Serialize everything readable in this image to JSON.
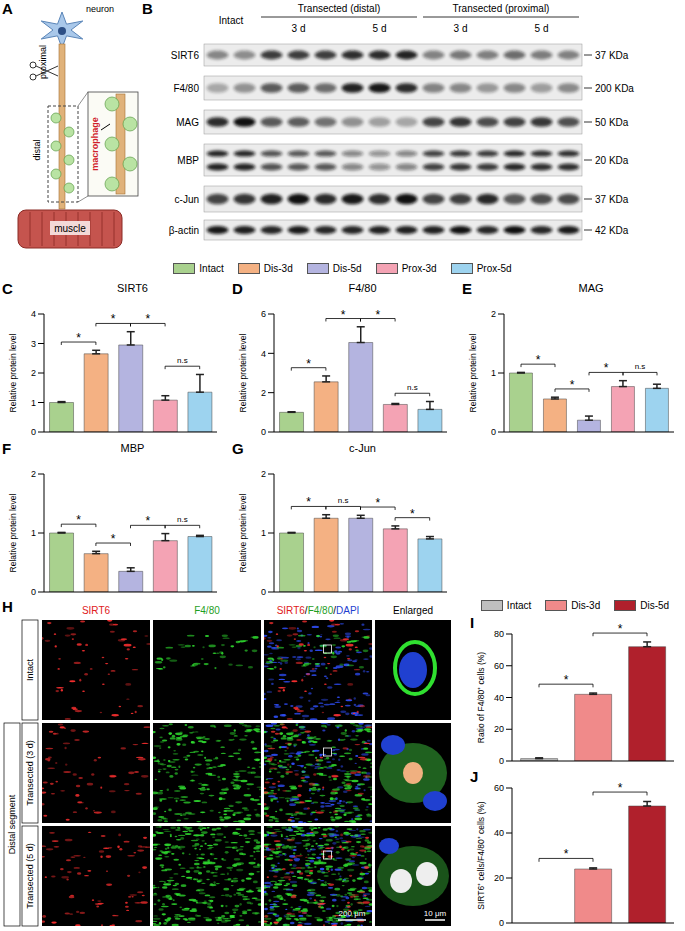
{
  "panel_A": {
    "letter": "A",
    "neuron": "neuron",
    "proximal": "proximal",
    "distal": "distal",
    "muscle": "muscle",
    "macrophage": "macrophage"
  },
  "panel_B": {
    "letter": "B",
    "groups": [
      "Intact",
      "Transected (distal)",
      "Transected (proximal)"
    ],
    "timepoints": [
      "3 d",
      "5 d"
    ],
    "rows": [
      {
        "name": "SIRT6",
        "kda": "37 KDa"
      },
      {
        "name": "F4/80",
        "kda": "200 KDa"
      },
      {
        "name": "MAG",
        "kda": "50 KDa"
      },
      {
        "name": "MBP",
        "kda": "20 KDa"
      },
      {
        "name": "c-Jun",
        "kda": "37 KDa"
      },
      {
        "name": "β-actin",
        "kda": "42 KDa"
      }
    ]
  },
  "chart_data": [
    {
      "type": "bar",
      "panel": "C",
      "title": "SIRT6",
      "y_label": "Relative protein level",
      "categories": [
        "Intact",
        "Dis-3d",
        "Dis-5d",
        "Prox-3d",
        "Prox-5d"
      ],
      "values": [
        1.0,
        2.65,
        2.95,
        1.08,
        1.35
      ],
      "errors": [
        0.03,
        0.12,
        0.45,
        0.15,
        0.6
      ],
      "colors": [
        "#a9d18e",
        "#f4b183",
        "#b4b4e0",
        "#f4a3b4",
        "#9dd3ef"
      ],
      "ylim": [
        0,
        4
      ],
      "yticks": [
        0,
        1,
        2,
        3,
        4
      ],
      "tick_labels": "y",
      "comparisons": [
        {
          "from": "Intact",
          "to": "Dis-3d",
          "label": "*"
        },
        {
          "from": "Dis-3d",
          "to": "Dis-5d",
          "label": "*"
        },
        {
          "from": "Dis-5d",
          "to": "Prox-3d",
          "label": "*"
        },
        {
          "from": "Prox-3d",
          "to": "Prox-5d",
          "label": "n.s"
        }
      ]
    },
    {
      "type": "bar",
      "panel": "D",
      "title": "F4/80",
      "y_label": "Relative protein level",
      "categories": [
        "Intact",
        "Dis-3d",
        "Dis-5d",
        "Prox-3d",
        "Prox-5d"
      ],
      "values": [
        1.0,
        2.55,
        4.55,
        1.4,
        1.15
      ],
      "errors": [
        0.03,
        0.3,
        0.8,
        0.05,
        0.4
      ],
      "colors": [
        "#a9d18e",
        "#f4b183",
        "#b4b4e0",
        "#f4a3b4",
        "#9dd3ef"
      ],
      "ylim": [
        0,
        6
      ],
      "yticks": [
        0,
        2,
        4,
        6
      ],
      "tick_labels": "y",
      "comparisons": [
        {
          "from": "Intact",
          "to": "Dis-3d",
          "label": "*"
        },
        {
          "from": "Dis-3d",
          "to": "Dis-5d",
          "label": "*"
        },
        {
          "from": "Dis-5d",
          "to": "Prox-3d",
          "label": "*"
        },
        {
          "from": "Prox-3d",
          "to": "Prox-5d",
          "label": "n.s"
        }
      ]
    },
    {
      "type": "bar",
      "panel": "E",
      "title": "MAG",
      "y_label": "Relative protein level",
      "categories": [
        "Intact",
        "Dis-3d",
        "Dis-5d",
        "Prox-3d",
        "Prox-5d"
      ],
      "values": [
        1.0,
        0.56,
        0.2,
        0.77,
        0.74
      ],
      "errors": [
        0.01,
        0.03,
        0.07,
        0.1,
        0.07
      ],
      "colors": [
        "#a9d18e",
        "#f4b183",
        "#b4b4e0",
        "#f4a3b4",
        "#9dd3ef"
      ],
      "ylim": [
        0,
        2
      ],
      "yticks": [
        0,
        1,
        2
      ],
      "tick_labels": "y",
      "comparisons": [
        {
          "from": "Intact",
          "to": "Dis-3d",
          "label": "*"
        },
        {
          "from": "Dis-3d",
          "to": "Dis-5d",
          "label": "*"
        },
        {
          "from": "Dis-5d",
          "to": "Prox-3d",
          "label": "*"
        },
        {
          "from": "Prox-3d",
          "to": "Prox-5d",
          "label": "n.s"
        }
      ]
    },
    {
      "type": "bar",
      "panel": "F",
      "title": "MBP",
      "y_label": "Relative protein level",
      "categories": [
        "Intact",
        "Dis-3d",
        "Dis-5d",
        "Prox-3d",
        "Prox-5d"
      ],
      "values": [
        1.0,
        0.65,
        0.35,
        0.87,
        0.94
      ],
      "errors": [
        0.01,
        0.04,
        0.06,
        0.12,
        0.02
      ],
      "colors": [
        "#a9d18e",
        "#f4b183",
        "#b4b4e0",
        "#f4a3b4",
        "#9dd3ef"
      ],
      "ylim": [
        0,
        2
      ],
      "yticks": [
        0,
        1,
        2
      ],
      "tick_labels": "y",
      "comparisons": [
        {
          "from": "Intact",
          "to": "Dis-3d",
          "label": "*"
        },
        {
          "from": "Dis-3d",
          "to": "Dis-5d",
          "label": "*"
        },
        {
          "from": "Dis-5d",
          "to": "Prox-3d",
          "label": "*"
        },
        {
          "from": "Prox-3d",
          "to": "Prox-5d",
          "label": "n.s"
        }
      ]
    },
    {
      "type": "bar",
      "panel": "G",
      "title": "c-Jun",
      "y_label": "Relative protein level",
      "categories": [
        "Intact",
        "Dis-3d",
        "Dis-5d",
        "Prox-3d",
        "Prox-5d"
      ],
      "values": [
        1.0,
        1.25,
        1.25,
        1.07,
        0.9
      ],
      "errors": [
        0.01,
        0.06,
        0.05,
        0.05,
        0.04
      ],
      "colors": [
        "#a9d18e",
        "#f4b183",
        "#b4b4e0",
        "#f4a3b4",
        "#9dd3ef"
      ],
      "ylim": [
        0,
        2
      ],
      "yticks": [
        0,
        1,
        2
      ],
      "tick_labels": "y",
      "comparisons": [
        {
          "from": "Intact",
          "to": "Dis-3d",
          "label": "*"
        },
        {
          "from": "Dis-3d",
          "to": "Dis-5d",
          "label": "n.s"
        },
        {
          "from": "Dis-5d",
          "to": "Prox-3d",
          "label": "*"
        },
        {
          "from": "Prox-3d",
          "to": "Prox-5d",
          "label": "*"
        }
      ]
    },
    {
      "type": "bar",
      "panel": "I",
      "y_label": "Ratio of F4/80⁺ cells (%)",
      "categories": [
        "Intact",
        "Dis-3d",
        "Dis-5d"
      ],
      "values": [
        1.5,
        42,
        72
      ],
      "errors": [
        0.5,
        0.8,
        3
      ],
      "colors": [
        "#bfbfbf",
        "#f08a8a",
        "#b0202c"
      ],
      "ylim": [
        0,
        80
      ],
      "yticks": [
        0,
        20,
        40,
        60,
        80
      ],
      "tick_labels": "y",
      "comparisons": [
        {
          "from": "Intact",
          "to": "Dis-3d",
          "label": "*"
        },
        {
          "from": "Dis-3d",
          "to": "Dis-5d",
          "label": "*"
        }
      ]
    },
    {
      "type": "bar",
      "panel": "J",
      "y_label": "SIRT6⁺ cells/F4/80⁺ cells (%)",
      "categories": [
        "Intact",
        "Dis-3d",
        "Dis-5d"
      ],
      "values": [
        0,
        24,
        52
      ],
      "errors": [
        0,
        0.5,
        2
      ],
      "colors": [
        "#bfbfbf",
        "#f08a8a",
        "#b0202c"
      ],
      "ylim": [
        0,
        60
      ],
      "yticks": [
        0,
        20,
        40,
        60
      ],
      "tick_labels": "y",
      "comparisons": [
        {
          "from": "Intact",
          "to": "Dis-3d",
          "label": "*"
        },
        {
          "from": "Dis-3d",
          "to": "Dis-5d",
          "label": "*"
        }
      ]
    }
  ],
  "panel_H": {
    "letter": "H",
    "columns": [
      [
        {
          "text": "SIRT6",
          "color": "#e02020"
        }
      ],
      [
        {
          "text": "F4/80",
          "color": "#1fa01f"
        }
      ],
      [
        {
          "text": "SIRT6",
          "color": "#e02020"
        },
        {
          "text": "/",
          "color": "#000000"
        },
        {
          "text": "F4/80",
          "color": "#1fa01f"
        },
        {
          "text": "/",
          "color": "#000000"
        },
        {
          "text": "DAPI",
          "color": "#1f3fd0"
        }
      ],
      [
        {
          "text": "Enlarged",
          "color": "#000000"
        }
      ]
    ],
    "rows": [
      "Intact",
      "Transected (3 d)",
      "Transected (5 d)"
    ],
    "side_label": "Distal segment",
    "scale_bars": [
      "200 μm",
      "10 μm"
    ]
  }
}
